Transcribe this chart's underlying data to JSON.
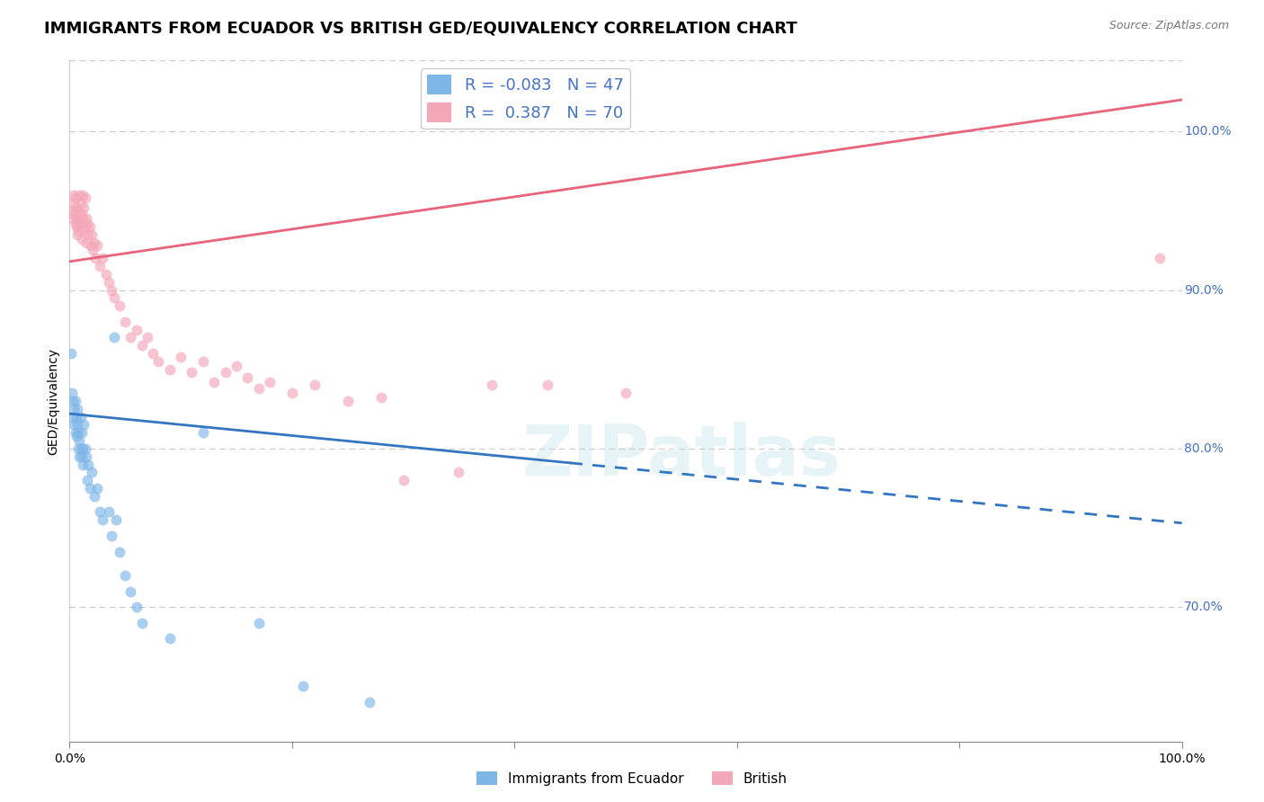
{
  "title": "IMMIGRANTS FROM ECUADOR VS BRITISH GED/EQUIVALENCY CORRELATION CHART",
  "source": "Source: ZipAtlas.com",
  "ylabel": "GED/Equivalency",
  "xlim": [
    0.0,
    1.0
  ],
  "ylim": [
    0.615,
    1.045
  ],
  "ytick_values": [
    0.7,
    0.8,
    0.9,
    1.0
  ],
  "ytick_labels": [
    "70.0%",
    "80.0%",
    "90.0%",
    "100.0%"
  ],
  "legend_ecuador_r": "-0.083",
  "legend_ecuador_n": "47",
  "legend_british_r": "0.387",
  "legend_british_n": "70",
  "ecuador_color": "#7EB6E8",
  "british_color": "#F4A7B9",
  "ecuador_line_color": "#3375C0",
  "british_line_color": "#E8637C",
  "watermark": "ZIPatlas",
  "ecuador_points": [
    [
      0.001,
      0.86
    ],
    [
      0.002,
      0.835
    ],
    [
      0.003,
      0.83
    ],
    [
      0.003,
      0.82
    ],
    [
      0.004,
      0.825
    ],
    [
      0.004,
      0.815
    ],
    [
      0.005,
      0.83
    ],
    [
      0.005,
      0.81
    ],
    [
      0.006,
      0.82
    ],
    [
      0.006,
      0.808
    ],
    [
      0.007,
      0.825
    ],
    [
      0.007,
      0.815
    ],
    [
      0.008,
      0.81
    ],
    [
      0.008,
      0.8
    ],
    [
      0.009,
      0.805
    ],
    [
      0.009,
      0.795
    ],
    [
      0.01,
      0.82
    ],
    [
      0.01,
      0.8
    ],
    [
      0.011,
      0.81
    ],
    [
      0.011,
      0.795
    ],
    [
      0.012,
      0.8
    ],
    [
      0.012,
      0.79
    ],
    [
      0.013,
      0.815
    ],
    [
      0.014,
      0.8
    ],
    [
      0.015,
      0.795
    ],
    [
      0.016,
      0.78
    ],
    [
      0.017,
      0.79
    ],
    [
      0.018,
      0.775
    ],
    [
      0.02,
      0.785
    ],
    [
      0.022,
      0.77
    ],
    [
      0.025,
      0.775
    ],
    [
      0.027,
      0.76
    ],
    [
      0.03,
      0.755
    ],
    [
      0.035,
      0.76
    ],
    [
      0.038,
      0.745
    ],
    [
      0.04,
      0.87
    ],
    [
      0.042,
      0.755
    ],
    [
      0.045,
      0.735
    ],
    [
      0.05,
      0.72
    ],
    [
      0.055,
      0.71
    ],
    [
      0.06,
      0.7
    ],
    [
      0.065,
      0.69
    ],
    [
      0.09,
      0.68
    ],
    [
      0.12,
      0.81
    ],
    [
      0.17,
      0.69
    ],
    [
      0.21,
      0.65
    ],
    [
      0.27,
      0.64
    ]
  ],
  "british_points": [
    [
      0.002,
      0.95
    ],
    [
      0.003,
      0.955
    ],
    [
      0.003,
      0.945
    ],
    [
      0.004,
      0.96
    ],
    [
      0.004,
      0.948
    ],
    [
      0.005,
      0.958
    ],
    [
      0.005,
      0.942
    ],
    [
      0.006,
      0.952
    ],
    [
      0.006,
      0.94
    ],
    [
      0.007,
      0.945
    ],
    [
      0.007,
      0.935
    ],
    [
      0.008,
      0.95
    ],
    [
      0.008,
      0.938
    ],
    [
      0.009,
      0.96
    ],
    [
      0.009,
      0.945
    ],
    [
      0.01,
      0.955
    ],
    [
      0.01,
      0.942
    ],
    [
      0.011,
      0.948
    ],
    [
      0.011,
      0.932
    ],
    [
      0.012,
      0.96
    ],
    [
      0.012,
      0.945
    ],
    [
      0.013,
      0.952
    ],
    [
      0.013,
      0.938
    ],
    [
      0.014,
      0.958
    ],
    [
      0.014,
      0.94
    ],
    [
      0.015,
      0.945
    ],
    [
      0.015,
      0.93
    ],
    [
      0.016,
      0.942
    ],
    [
      0.017,
      0.935
    ],
    [
      0.018,
      0.94
    ],
    [
      0.019,
      0.928
    ],
    [
      0.02,
      0.935
    ],
    [
      0.021,
      0.925
    ],
    [
      0.022,
      0.93
    ],
    [
      0.023,
      0.92
    ],
    [
      0.025,
      0.928
    ],
    [
      0.027,
      0.915
    ],
    [
      0.03,
      0.92
    ],
    [
      0.033,
      0.91
    ],
    [
      0.035,
      0.905
    ],
    [
      0.038,
      0.9
    ],
    [
      0.04,
      0.895
    ],
    [
      0.045,
      0.89
    ],
    [
      0.05,
      0.88
    ],
    [
      0.055,
      0.87
    ],
    [
      0.06,
      0.875
    ],
    [
      0.065,
      0.865
    ],
    [
      0.07,
      0.87
    ],
    [
      0.075,
      0.86
    ],
    [
      0.08,
      0.855
    ],
    [
      0.09,
      0.85
    ],
    [
      0.1,
      0.858
    ],
    [
      0.11,
      0.848
    ],
    [
      0.12,
      0.855
    ],
    [
      0.13,
      0.842
    ],
    [
      0.14,
      0.848
    ],
    [
      0.15,
      0.852
    ],
    [
      0.16,
      0.845
    ],
    [
      0.17,
      0.838
    ],
    [
      0.18,
      0.842
    ],
    [
      0.2,
      0.835
    ],
    [
      0.22,
      0.84
    ],
    [
      0.25,
      0.83
    ],
    [
      0.28,
      0.832
    ],
    [
      0.3,
      0.78
    ],
    [
      0.35,
      0.785
    ],
    [
      0.38,
      0.84
    ],
    [
      0.43,
      0.84
    ],
    [
      0.5,
      0.835
    ],
    [
      0.98,
      0.92
    ]
  ],
  "ecuador_line_x0": 0.0,
  "ecuador_line_x1": 1.0,
  "ecuador_line_y0": 0.822,
  "ecuador_line_y1": 0.753,
  "ecuador_line_dash_start": 0.45,
  "british_line_x0": 0.0,
  "british_line_x1": 1.0,
  "british_line_y0": 0.918,
  "british_line_y1": 1.02,
  "point_size": 75,
  "point_alpha": 0.65,
  "grid_color": "#cccccc",
  "background_color": "#ffffff",
  "title_fontsize": 13,
  "right_tick_color": "#4472C4"
}
